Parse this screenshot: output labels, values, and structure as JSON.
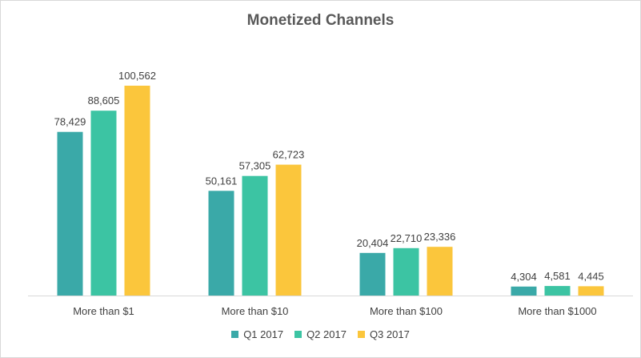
{
  "chart_data": {
    "type": "bar",
    "title": "Monetized Channels",
    "xlabel": "",
    "ylabel": "",
    "categories": [
      "More than $1",
      "More than $10",
      "More than $100",
      "More than $1000"
    ],
    "series": [
      {
        "name": "Q1 2017",
        "color": "#3aa9a8",
        "values": [
          78429,
          50161,
          20404,
          4304
        ]
      },
      {
        "name": "Q2 2017",
        "color": "#3cc4a3",
        "values": [
          88605,
          57305,
          22710,
          4581
        ]
      },
      {
        "name": "Q3 2017",
        "color": "#fbc63c",
        "values": [
          100562,
          62723,
          23336,
          4445
        ]
      }
    ],
    "value_labels": [
      [
        "78,429",
        "50,161",
        "20,404",
        "4,304"
      ],
      [
        "88,605",
        "57,305",
        "22,710",
        "4,581"
      ],
      [
        "100,562",
        "62,723",
        "23,336",
        "4,445"
      ]
    ],
    "ylim": [
      0,
      100562
    ],
    "grid": false,
    "legend_position": "bottom"
  }
}
